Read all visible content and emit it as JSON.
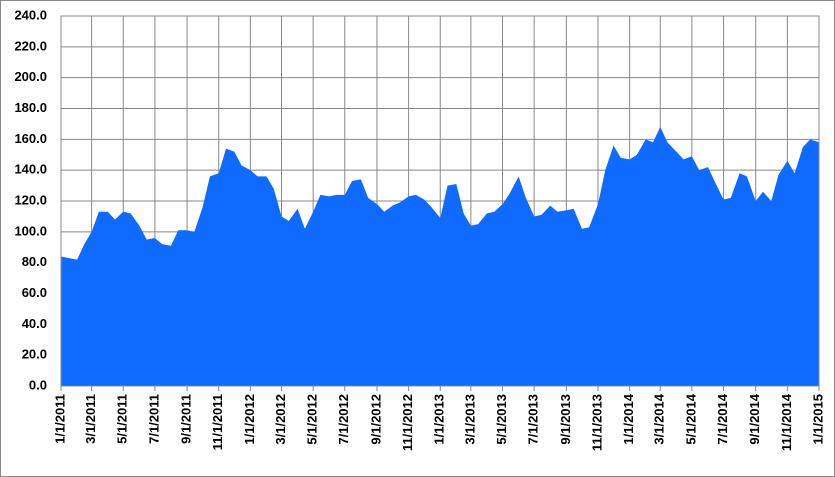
{
  "chart_data": {
    "type": "area",
    "color": "#0f6bff",
    "grid": true,
    "x": [
      "1/1/2011",
      "1/15/2011",
      "2/1/2011",
      "2/15/2011",
      "3/1/2011",
      "3/15/2011",
      "4/1/2011",
      "4/15/2011",
      "5/1/2011",
      "5/15/2011",
      "6/1/2011",
      "6/15/2011",
      "7/1/2011",
      "7/15/2011",
      "8/1/2011",
      "8/15/2011",
      "9/1/2011",
      "9/15/2011",
      "10/1/2011",
      "10/15/2011",
      "11/1/2011",
      "11/15/2011",
      "12/1/2011",
      "12/15/2011",
      "1/1/2012",
      "1/15/2012",
      "2/1/2012",
      "2/15/2012",
      "3/1/2012",
      "3/15/2012",
      "4/1/2012",
      "4/15/2012",
      "5/1/2012",
      "5/15/2012",
      "6/1/2012",
      "6/15/2012",
      "7/1/2012",
      "7/15/2012",
      "8/1/2012",
      "8/15/2012",
      "9/1/2012",
      "9/15/2012",
      "10/1/2012",
      "10/15/2012",
      "11/1/2012",
      "11/15/2012",
      "12/1/2012",
      "12/15/2012",
      "1/1/2013",
      "1/15/2013",
      "2/1/2013",
      "2/15/2013",
      "3/1/2013",
      "3/15/2013",
      "4/1/2013",
      "4/15/2013",
      "5/1/2013",
      "5/15/2013",
      "6/1/2013",
      "6/15/2013",
      "7/1/2013",
      "7/15/2013",
      "8/1/2013",
      "8/15/2013",
      "9/1/2013",
      "9/15/2013",
      "10/1/2013",
      "10/15/2013",
      "11/1/2013",
      "11/15/2013",
      "12/1/2013",
      "12/15/2013",
      "1/1/2014",
      "1/15/2014",
      "2/1/2014",
      "2/15/2014",
      "3/1/2014",
      "3/15/2014",
      "4/1/2014",
      "4/15/2014",
      "5/1/2014",
      "5/15/2014",
      "6/1/2014",
      "6/15/2014",
      "7/1/2014",
      "7/15/2014",
      "8/1/2014",
      "8/15/2014",
      "9/1/2014",
      "9/15/2014",
      "10/1/2014",
      "10/15/2014",
      "11/1/2014",
      "11/15/2014",
      "12/1/2014",
      "12/15/2014",
      "1/1/2015"
    ],
    "values": [
      84,
      83,
      82,
      92,
      100,
      113,
      113,
      108,
      113,
      112,
      104,
      95,
      96,
      92,
      91,
      101,
      101,
      100,
      116,
      136,
      138,
      154,
      152,
      143,
      140,
      136,
      136,
      128,
      110,
      107,
      115,
      102,
      113,
      124,
      123,
      124,
      124,
      133,
      134,
      122,
      118,
      113,
      117,
      119,
      123,
      124,
      121,
      116,
      109,
      130,
      131,
      112,
      104,
      105,
      112,
      113,
      118,
      125,
      136,
      122,
      110,
      111,
      117,
      113,
      114,
      115,
      102,
      103,
      118,
      140,
      156,
      148,
      147,
      150,
      160,
      158,
      168,
      158,
      152,
      147,
      149,
      140,
      142,
      132,
      121,
      122,
      138,
      136,
      120,
      126,
      120,
      137,
      146,
      138,
      155,
      160,
      158
    ],
    "xlim": [
      "1/1/2011",
      "1/1/2015"
    ],
    "xticks": [
      "1/1/2011",
      "3/1/2011",
      "5/1/2011",
      "7/1/2011",
      "9/1/2011",
      "11/1/2011",
      "1/1/2012",
      "3/1/2012",
      "5/1/2012",
      "7/1/2012",
      "9/1/2012",
      "11/1/2012",
      "1/1/2013",
      "3/1/2013",
      "5/1/2013",
      "7/1/2013",
      "9/1/2013",
      "11/1/2013",
      "1/1/2014",
      "3/1/2014",
      "5/1/2014",
      "7/1/2014",
      "9/1/2014",
      "11/1/2014",
      "1/1/2015"
    ],
    "ylim": [
      0,
      240
    ],
    "yticks": [
      {
        "value": 0,
        "label": "0.0"
      },
      {
        "value": 20,
        "label": "20.0"
      },
      {
        "value": 40,
        "label": "40.0"
      },
      {
        "value": 60,
        "label": "60.0"
      },
      {
        "value": 80,
        "label": "80.0"
      },
      {
        "value": 100,
        "label": "100.0"
      },
      {
        "value": 120,
        "label": "120.0"
      },
      {
        "value": 140,
        "label": "140.0"
      },
      {
        "value": 160,
        "label": "160.0"
      },
      {
        "value": 180,
        "label": "180.0"
      },
      {
        "value": 200,
        "label": "200.0"
      },
      {
        "value": 220,
        "label": "220.0"
      },
      {
        "value": 240,
        "label": "240.0"
      }
    ]
  }
}
